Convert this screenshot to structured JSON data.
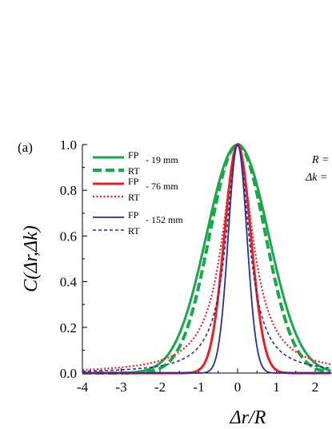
{
  "chart_data": {
    "type": "line",
    "panel_label": "(a)",
    "xlabel": "Δr/R",
    "ylabel": "C(Δr,Δk)",
    "xlim": [
      -4,
      2.4
    ],
    "ylim": [
      0,
      1
    ],
    "xticks": [
      "-4",
      "-3",
      "-2",
      "-1",
      "0",
      "1",
      "2"
    ],
    "yticks": [
      "0.0",
      "0.2",
      "0.4",
      "0.6",
      "0.8",
      "1.0"
    ],
    "xtick_values": [
      -4,
      -3,
      -2,
      -1,
      0,
      1,
      2
    ],
    "ytick_values": [
      0,
      0.2,
      0.4,
      0.6,
      0.8,
      1.0
    ],
    "grid": false,
    "legend_position": "top-left",
    "legend_groups": [
      {
        "line1": "FP",
        "line2": "RT",
        "suffix": "- 19 mm"
      },
      {
        "line1": "FP",
        "line2": "RT",
        "suffix": "- 76 mm"
      },
      {
        "line1": "FP",
        "line2": "RT",
        "suffix": "- 152 mm"
      }
    ],
    "annotations": [
      "R =",
      "Δk ="
    ],
    "series": [
      {
        "color": "#1aa64a",
        "dash": "solid",
        "shape": "gauss",
        "width": 0.8
      },
      {
        "color": "#1aa64a",
        "dash": "dashed",
        "shape": "gauss",
        "width": 0.72
      },
      {
        "color": "#e8202a",
        "dash": "solid",
        "shape": "gauss",
        "width": 0.34
      },
      {
        "color": "#e8202a",
        "dash": "dotted",
        "shape": "lorentz",
        "width": 0.48
      },
      {
        "color": "#2a2f8f",
        "dash": "solid",
        "shape": "gauss",
        "width": 0.24
      },
      {
        "color": "#2a2f8f",
        "dash": "shortdash",
        "shape": "lorentz",
        "width": 0.36
      }
    ]
  }
}
